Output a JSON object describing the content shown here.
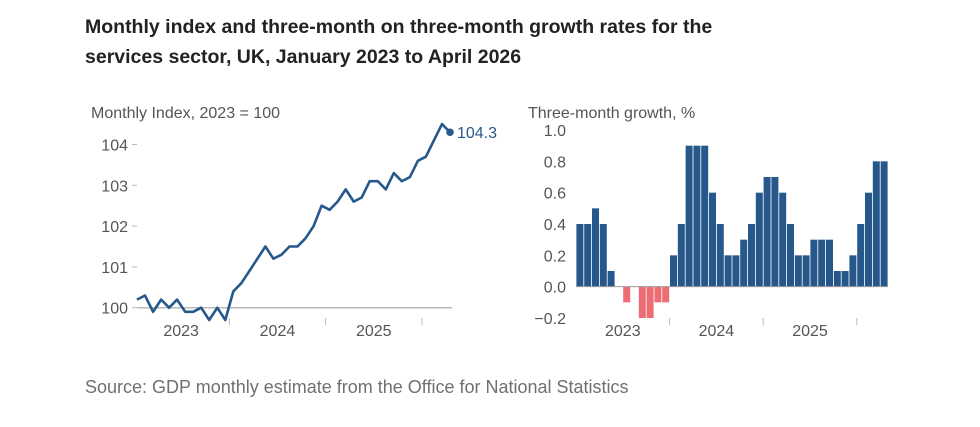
{
  "title": "Monthly index and three-month on three-month growth rates for the services sector, UK, January 2023 to April 2026",
  "source": "Source: GDP monthly estimate from the Office for National Statistics",
  "colors": {
    "line": "#27588C",
    "bar_positive": "#27588C",
    "bar_negative": "#EE6D75",
    "axis": "#BBBBBB",
    "tick_text": "#555555"
  },
  "chart_data": [
    {
      "type": "line",
      "ylabel": "Monthly Index, 2023 = 100",
      "x_start": "2023-01",
      "x_end": "2026-04",
      "x_ticks": [
        "2023",
        "2024",
        "2025"
      ],
      "y_ticks": [
        "100",
        "101",
        "102",
        "103",
        "104"
      ],
      "ylim": [
        99.65,
        104.6
      ],
      "baseline": 100,
      "end_label": "104.3",
      "series": [
        {
          "values": [
            100.2,
            100.3,
            99.9,
            100.2,
            100.0,
            100.2,
            99.9,
            99.9,
            100.0,
            99.7,
            100.0,
            99.7,
            100.4,
            100.6,
            100.9,
            101.2,
            101.5,
            101.2,
            101.3,
            101.5,
            101.5,
            101.7,
            102.0,
            102.5,
            102.4,
            102.6,
            102.9,
            102.6,
            102.7,
            103.1,
            103.1,
            102.9,
            103.3,
            103.1,
            103.2,
            103.6,
            103.7,
            104.1,
            104.5,
            104.3
          ]
        }
      ]
    },
    {
      "type": "bar",
      "ylabel": "Three-month growth, %",
      "x_ticks": [
        "2023",
        "2024",
        "2025"
      ],
      "y_ticks": [
        "1.0",
        "0.8",
        "0.6",
        "0.4",
        "0.2",
        "0.0",
        "−0.2"
      ],
      "ylim": [
        -0.2,
        1.0
      ],
      "values": [
        0.4,
        0.4,
        0.5,
        0.4,
        0.1,
        0.0,
        -0.1,
        0.0,
        -0.2,
        -0.2,
        -0.1,
        -0.1,
        0.2,
        0.4,
        0.9,
        0.9,
        0.9,
        0.6,
        0.4,
        0.2,
        0.2,
        0.3,
        0.4,
        0.6,
        0.7,
        0.7,
        0.6,
        0.4,
        0.2,
        0.2,
        0.3,
        0.3,
        0.3,
        0.1,
        0.1,
        0.2,
        0.4,
        0.6,
        0.8,
        0.8
      ]
    }
  ]
}
